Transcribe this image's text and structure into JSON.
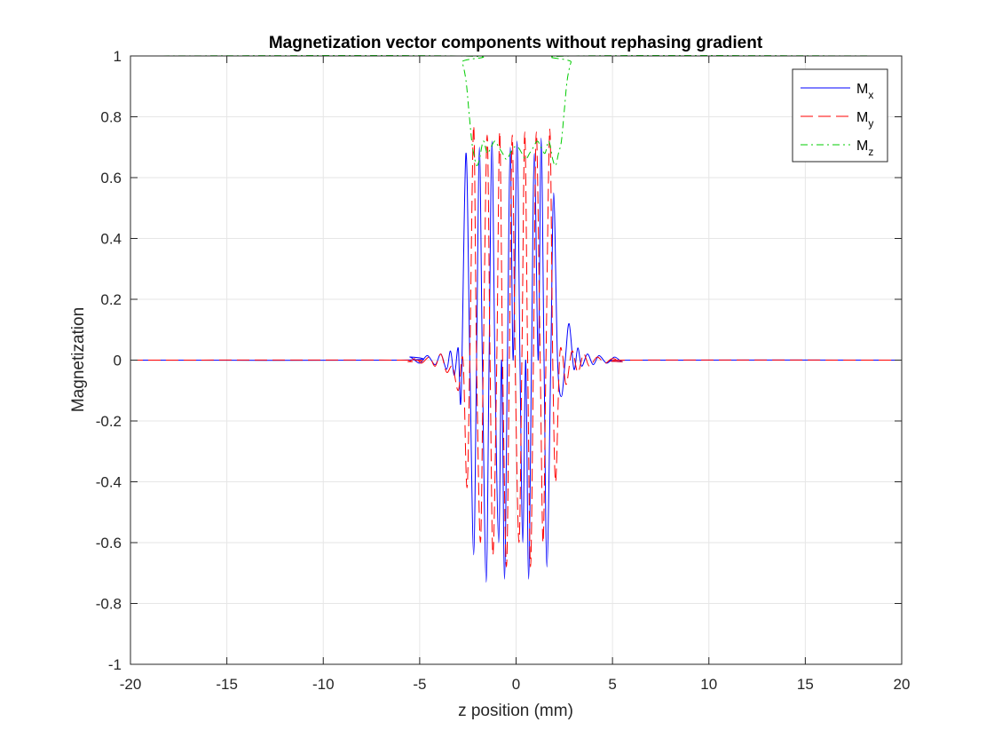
{
  "chart_data": {
    "type": "line",
    "title": "Magnetization vector components without rephasing gradient",
    "xlabel": "z position (mm)",
    "ylabel": "Magnetization",
    "xlim": [
      -20,
      20
    ],
    "ylim": [
      -1,
      1
    ],
    "xticks": [
      -20,
      -15,
      -10,
      -5,
      0,
      5,
      10,
      15,
      20
    ],
    "yticks": [
      -1,
      -0.8,
      -0.6,
      -0.4,
      -0.2,
      0,
      0.2,
      0.4,
      0.6,
      0.8,
      1
    ],
    "xtick_labels": [
      "-20",
      "-15",
      "-10",
      "-5",
      "0",
      "5",
      "10",
      "15",
      "20"
    ],
    "ytick_labels": [
      "-1",
      "-0.8",
      "-0.6",
      "-0.4",
      "-0.2",
      "0",
      "0.2",
      "0.4",
      "0.6",
      "0.8",
      "1"
    ],
    "grid": true,
    "legend_position": "top-right",
    "series": [
      {
        "name": "M",
        "subscript": "x",
        "color": "#0000ff",
        "style": "solid",
        "x": [
          -20,
          -6,
          -5.5,
          -5,
          -4.6,
          -4.2,
          -3.9,
          -3.6,
          -3.4,
          -3.2,
          -3.0,
          -2.85,
          -2.6,
          -2.4,
          -2.2,
          -2.05,
          -1.9,
          -1.75,
          -1.55,
          -1.4,
          -1.25,
          -1.1,
          -0.9,
          -0.75,
          -0.6,
          -0.45,
          -0.3,
          -0.15,
          0.05,
          0.2,
          0.35,
          0.5,
          0.65,
          0.8,
          0.95,
          1.15,
          1.3,
          1.45,
          1.6,
          1.8,
          1.95,
          2.15,
          2.35,
          2.55,
          2.75,
          3.0,
          3.2,
          3.4,
          3.7,
          4.0,
          4.3,
          4.7,
          5.1,
          5.5,
          6.0,
          20
        ],
        "y": [
          0,
          0,
          0.01,
          -0.01,
          0.015,
          -0.015,
          0.02,
          -0.03,
          0.03,
          -0.05,
          0.04,
          -0.12,
          0.68,
          0.0,
          -0.64,
          0.0,
          0.7,
          0.0,
          -0.73,
          0.0,
          0.72,
          0.0,
          -0.6,
          0.0,
          -0.72,
          0.0,
          0.7,
          0.0,
          0.72,
          0.0,
          -0.6,
          0.0,
          -0.72,
          0.0,
          0.68,
          0.0,
          0.73,
          0.0,
          -0.68,
          0.0,
          0.55,
          0.0,
          -0.12,
          0.0,
          0.12,
          -0.03,
          0.04,
          -0.02,
          0.02,
          -0.015,
          0.015,
          -0.01,
          0.01,
          -0.005,
          0,
          0
        ]
      },
      {
        "name": "M",
        "subscript": "y",
        "color": "#ff0000",
        "style": "dashed",
        "x": [
          -20,
          -6,
          -5.6,
          -5.2,
          -4.9,
          -4.5,
          -4.2,
          -3.9,
          -3.6,
          -3.3,
          -3.0,
          -2.75,
          -2.55,
          -2.4,
          -2.2,
          -2.05,
          -1.85,
          -1.7,
          -1.5,
          -1.35,
          -1.2,
          -1.0,
          -0.85,
          -0.7,
          -0.5,
          -0.35,
          -0.2,
          -0.05,
          0.15,
          0.3,
          0.45,
          0.6,
          0.75,
          0.9,
          1.05,
          1.25,
          1.4,
          1.55,
          1.75,
          1.9,
          2.05,
          2.25,
          2.4,
          2.6,
          2.9,
          3.2,
          3.5,
          3.8,
          4.2,
          4.6,
          5.0,
          5.5,
          6.0,
          20
        ],
        "y": [
          0,
          0,
          -0.005,
          0.005,
          -0.01,
          0.01,
          -0.02,
          0.02,
          -0.04,
          -0.02,
          -0.1,
          0.0,
          -0.42,
          0.0,
          0.77,
          0.0,
          -0.6,
          0.0,
          0.74,
          0.0,
          -0.64,
          0.0,
          0.75,
          0.0,
          -0.68,
          0.0,
          0.74,
          0.0,
          -0.6,
          0.0,
          0.75,
          0.0,
          -0.68,
          0.0,
          0.75,
          0.0,
          -0.6,
          0.0,
          0.76,
          0.0,
          -0.4,
          0.0,
          0.02,
          -0.08,
          0.03,
          -0.04,
          0.02,
          -0.02,
          0.01,
          -0.01,
          0.005,
          -0.005,
          0,
          0
        ]
      },
      {
        "name": "M",
        "subscript": "z",
        "color": "#00cc00",
        "style": "dashdot",
        "x": [
          -20,
          -3.0,
          -2.8,
          -2.6,
          -2.45,
          -2.3,
          -2.2,
          -2.05,
          -1.9,
          -1.7,
          -1.5,
          -1.3,
          -1.1,
          -0.9,
          -0.7,
          -0.5,
          -0.3,
          -0.1,
          0.1,
          0.3,
          0.5,
          0.7,
          0.9,
          1.1,
          1.3,
          1.5,
          1.7,
          1.9,
          2.05,
          2.2,
          2.35,
          2.5,
          2.65,
          2.85,
          3.05,
          20
        ],
        "y": [
          1,
          1,
          0.98,
          0.92,
          0.82,
          0.72,
          0.68,
          0.64,
          0.66,
          0.72,
          0.68,
          0.7,
          0.72,
          0.7,
          0.68,
          0.66,
          0.68,
          0.7,
          0.7,
          0.68,
          0.66,
          0.68,
          0.7,
          0.72,
          0.7,
          0.68,
          0.72,
          0.66,
          0.64,
          0.68,
          0.72,
          0.82,
          0.92,
          0.98,
          1,
          1
        ]
      }
    ]
  }
}
